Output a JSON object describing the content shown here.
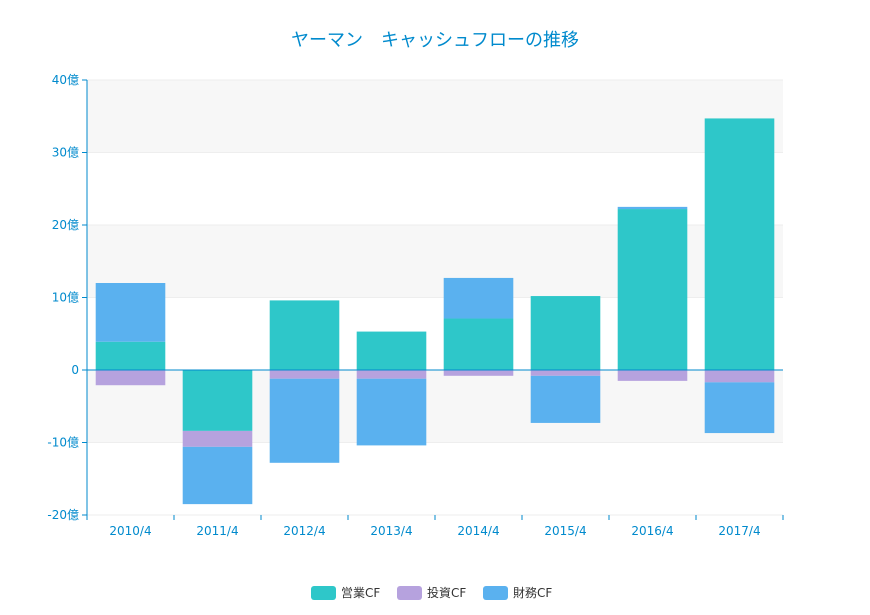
{
  "chart_data": {
    "type": "bar",
    "stacked": true,
    "title": "ヤーマン　キャッシュフローの推移",
    "categories": [
      "2010/4",
      "2011/4",
      "2012/4",
      "2013/4",
      "2014/4",
      "2015/4",
      "2016/4",
      "2017/4"
    ],
    "series": [
      {
        "name": "営業CF",
        "color": "#2ec7c9",
        "values": [
          3.9,
          -8.4,
          9.6,
          5.3,
          7.1,
          10.2,
          22.2,
          34.7
        ]
      },
      {
        "name": "投資CF",
        "color": "#b6a2de",
        "values": [
          -2.1,
          -2.2,
          -1.2,
          -1.2,
          -0.8,
          -0.8,
          -1.5,
          -1.7
        ]
      },
      {
        "name": "財務CF",
        "color": "#5ab1ef",
        "values": [
          8.1,
          -7.9,
          -11.6,
          -9.2,
          5.6,
          -6.5,
          0.3,
          -7.0
        ]
      }
    ],
    "yaxis": {
      "min": -20,
      "max": 40,
      "interval": 10,
      "tick_labels": [
        "-20億",
        "-10億",
        "0",
        "10億",
        "20億",
        "30億",
        "40億"
      ]
    },
    "legend_position": "bottom",
    "grid": true
  },
  "colors": {
    "title": "#008acd",
    "axis": "#008acd",
    "grid": "#eeeeee",
    "band": "#f7f7f7",
    "legend_text": "#333333"
  }
}
